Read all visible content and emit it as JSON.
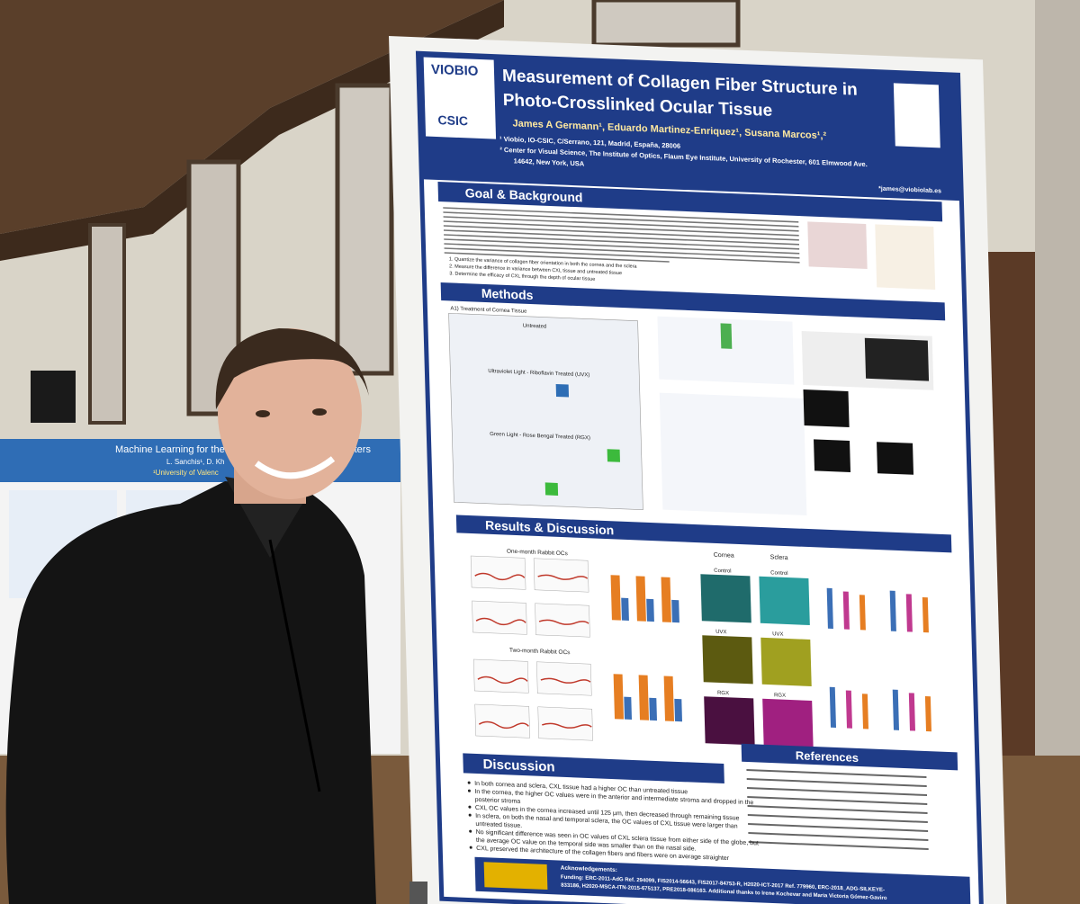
{
  "left_poster": {
    "title": "Machine Learning for the",
    "title_end": "Filters",
    "authors": "L. Sanchis¹, D. Kh",
    "affiliation": "¹University of Valenc"
  },
  "poster": {
    "logos": [
      "VIOBIO",
      "CSIC"
    ],
    "title": [
      "Measurement of Collagen Fiber Structure in",
      "Photo-Crosslinked Ocular Tissue"
    ],
    "authors": "James A Germann¹, Eduardo Martinez-Enriquez¹, Susana Marcos¹,²",
    "affiliations": [
      "¹ Viobio, IO-CSIC, C/Serrano, 121, Madrid, España, 28006",
      "² Center for Visual Science, The Institute of Optics, Flaum Eye Institute, University of Rochester, 601 Elmwood Ave.",
      "14642, New York, USA"
    ],
    "email": "*james@viobiolab.es",
    "goal": {
      "heading": "Goal & Background",
      "aims": [
        "1.  Quantize the variance of collagen fiber orientation in both the cornea and the sclera",
        "2.  Measure the difference in variance between CXL tissue and untreated tissue",
        "3.  Determine the efficacy of CXL through the depth of ocular tissue"
      ]
    },
    "methods": {
      "heading": "Methods",
      "subheadings": [
        "A1) Treatment of Cornea Tissue",
        "Untreated",
        "Ultraviolet Light - Riboflavin Treated (UVX)",
        "Green Light - Rose Bengal Treated (RGX)"
      ]
    },
    "results": {
      "heading": "Results & Discussion",
      "rabbit": [
        "One-month Rabbit OCs",
        "Two-month Rabbit OCs"
      ],
      "tissues": [
        "Cornea",
        "Sclera"
      ],
      "treatments": [
        "Control",
        "UVX",
        "RGX"
      ]
    },
    "discussion": {
      "heading": "Discussion",
      "points": [
        "In both cornea and sclera, CXL tissue had a higher OC than untreated tissue",
        "In the cornea, the higher OC values were in the anterior and intermediate stroma and dropped in the",
        "posterior stroma",
        "CXL OC values in the cornea increased until 125 µm, then decreased through remaining tissue",
        "In sclera, on both the nasal and temporal sclera, the OC values of CXL tissue were larger than",
        "untreated tissue.",
        "No significant difference was seen in OC values of CXL sclera tissue from either side of the globe, but",
        "the average OC value on the temporal side was smaller than on the nasal side.",
        "CXL preserved the architecture of the collagen fibers and fibers were on average straighter"
      ]
    },
    "references": {
      "heading": "References"
    },
    "acknowledgements": {
      "heading": "Acknowledgements:",
      "funding": [
        "Funding: ERC-2011-AdG Ref. 294099, FIS2014-56643, FIS2017-84753-R, H2020-ICT-2017 Ref. 779960, ERC-2018_ADG-SILKEYE-",
        "833186, H2020-MSCA-ITN-2015-675137, PRE2018-086163. Additional thanks to Irene Kochevar and Maria Victoria Gómez-Gaviro"
      ]
    }
  }
}
